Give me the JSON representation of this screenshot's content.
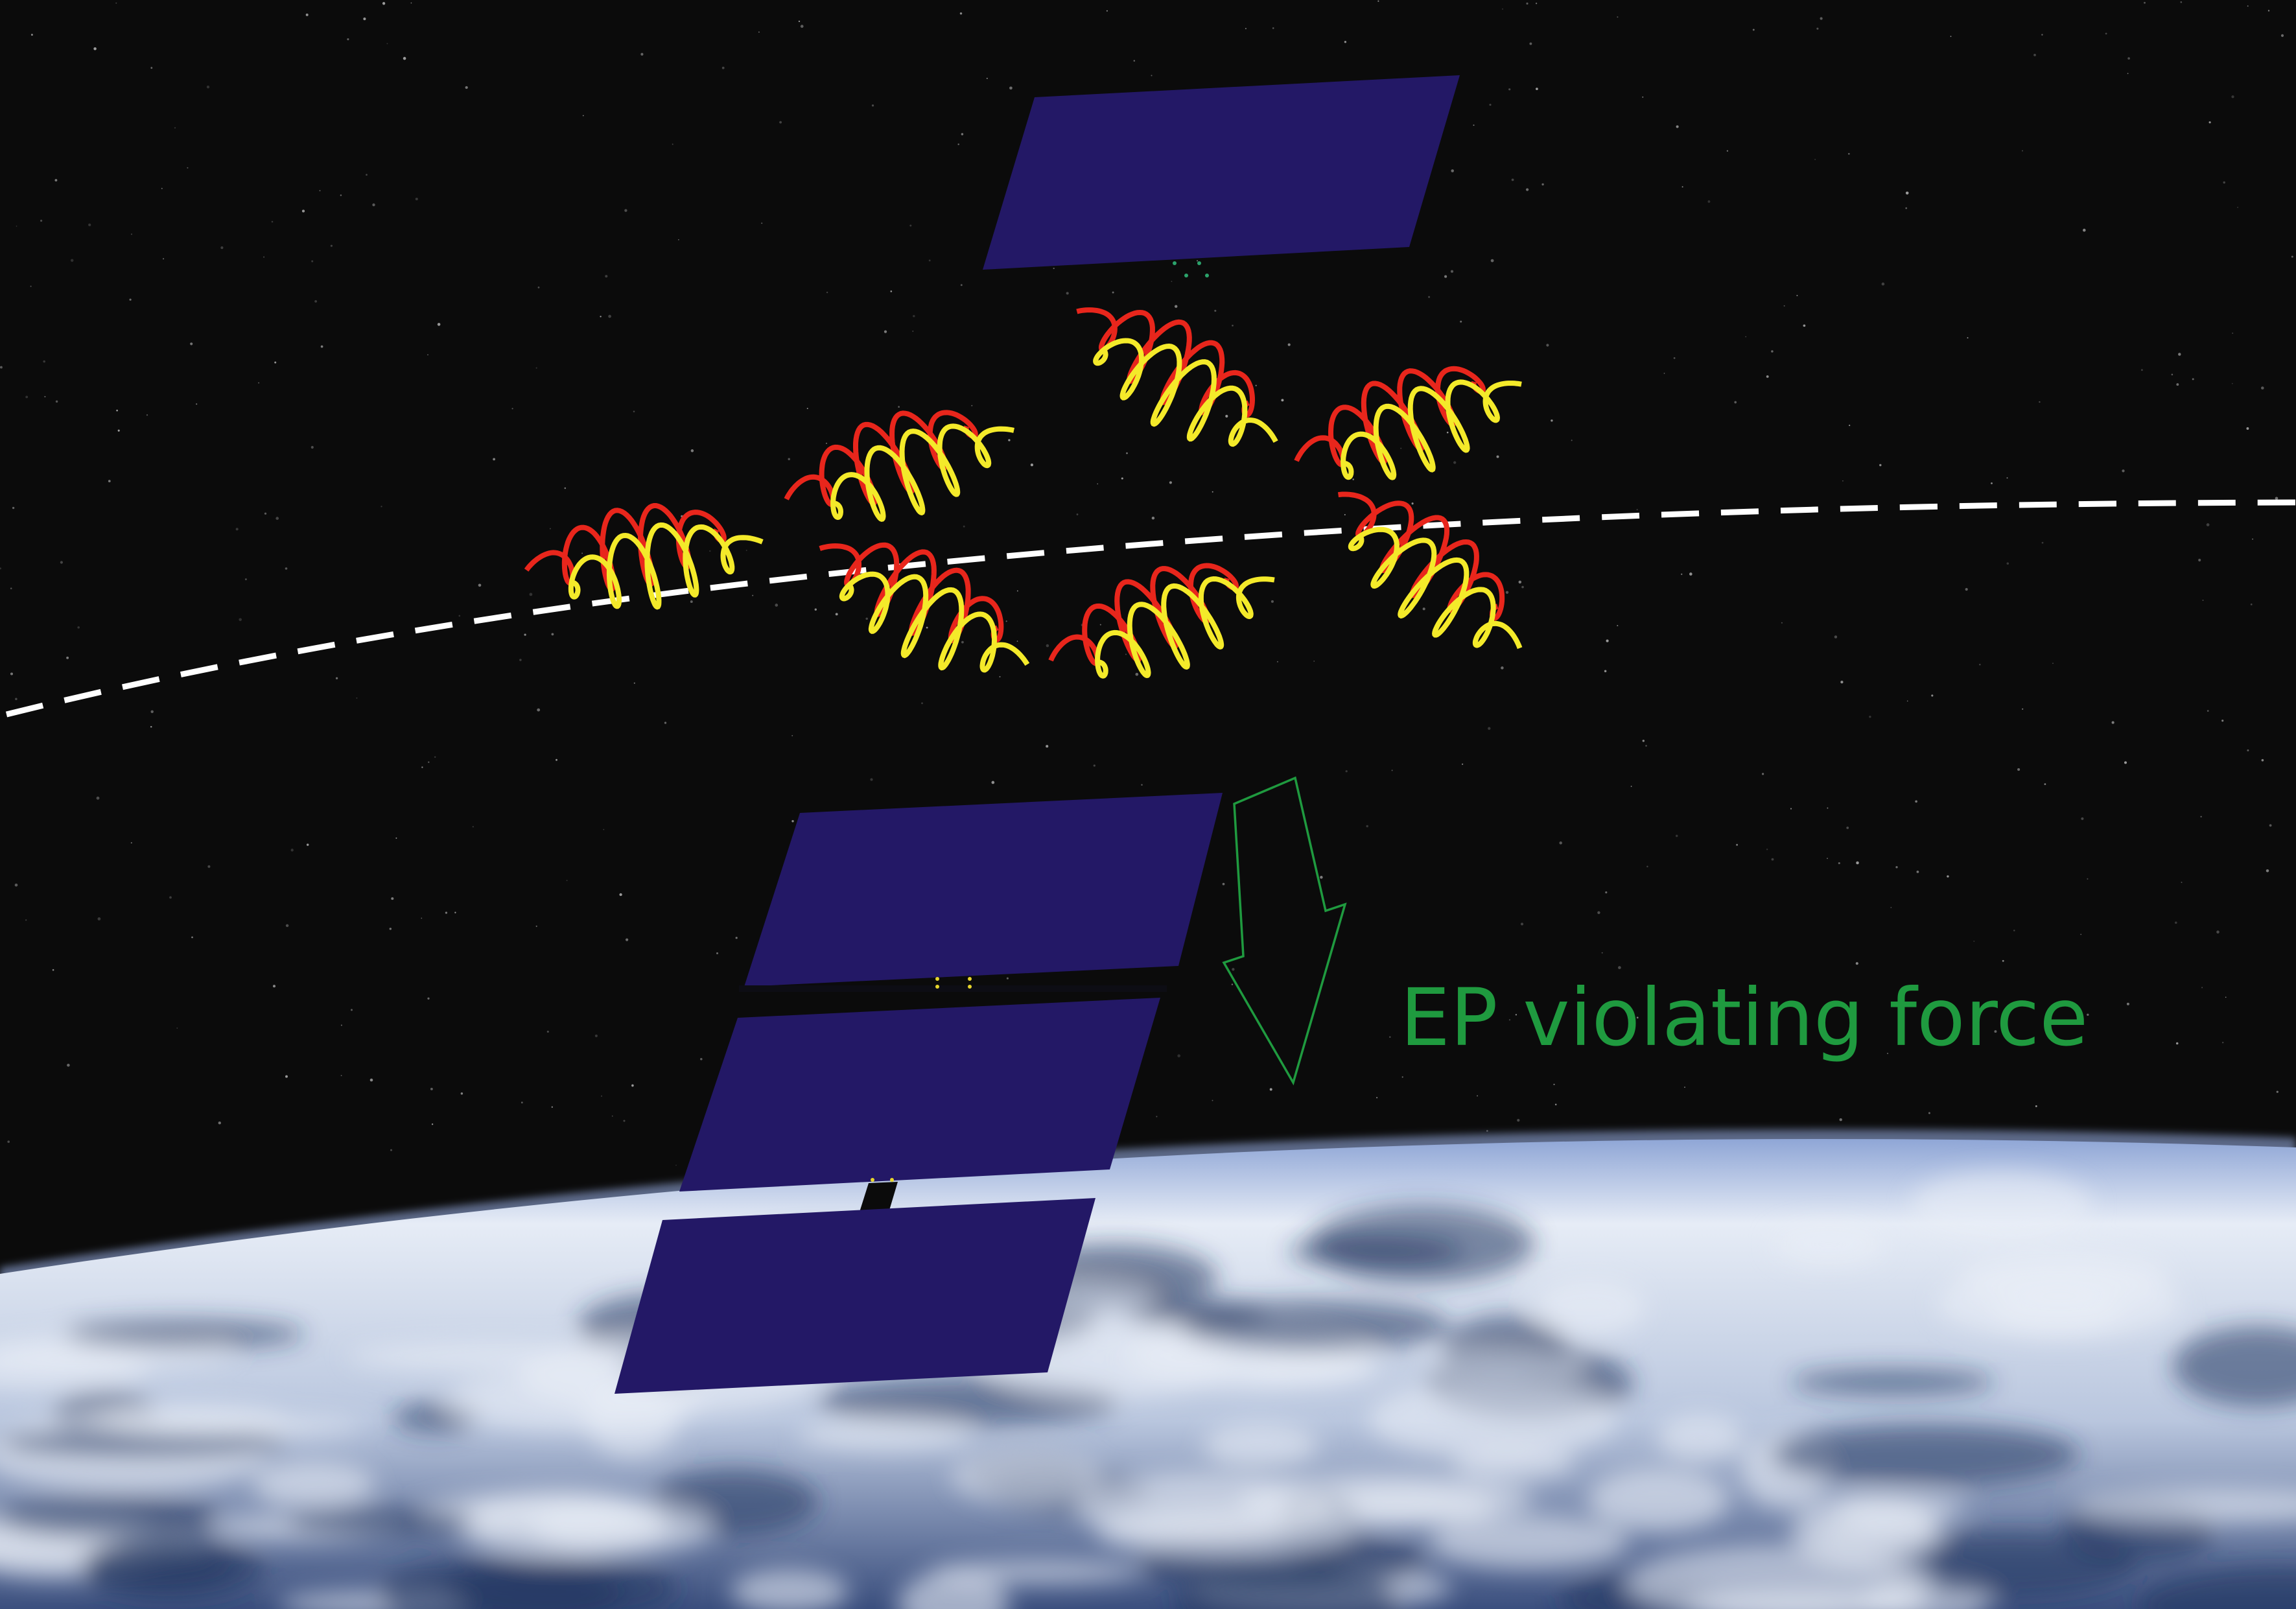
{
  "colors": {
    "space_background": "#0b0b0b",
    "panel_fill": "#231866",
    "wave_red": "#e8261c",
    "wave_yellow": "#f4ea2a",
    "orbit_line": "#ffffff",
    "annotation_green": "#1f9a3f",
    "earth_cloud": "#e9eef7",
    "earth_ocean": "#21345f"
  },
  "annotation": {
    "force_label": "EP violating force"
  },
  "icons": {
    "force_arrow": "down-arrow-outline-icon"
  }
}
